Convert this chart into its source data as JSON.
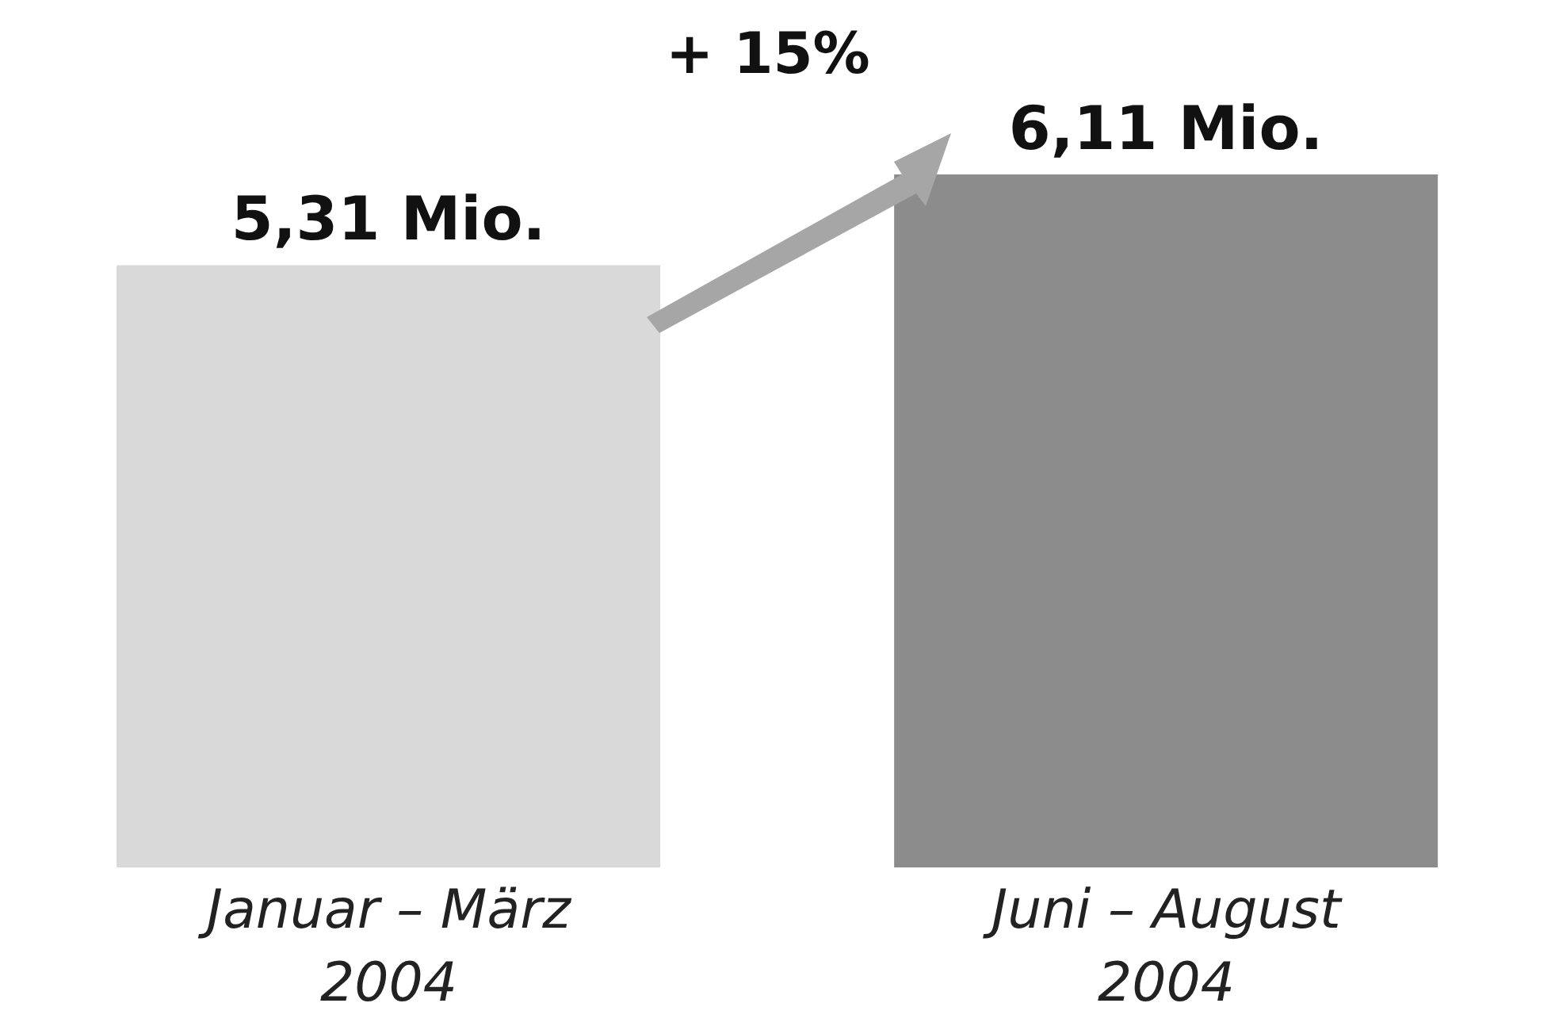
{
  "chart_data": {
    "type": "bar",
    "categories": [
      "Januar – März\n2004",
      "Juni – August\n2004"
    ],
    "values": [
      5.31,
      6.11
    ],
    "colors": [
      "#d9d9d9",
      "#8c8c8c"
    ],
    "value_labels": [
      "5,31 Mio.",
      "6,11 Mio."
    ],
    "annotations": [
      "+ 15%"
    ]
  }
}
